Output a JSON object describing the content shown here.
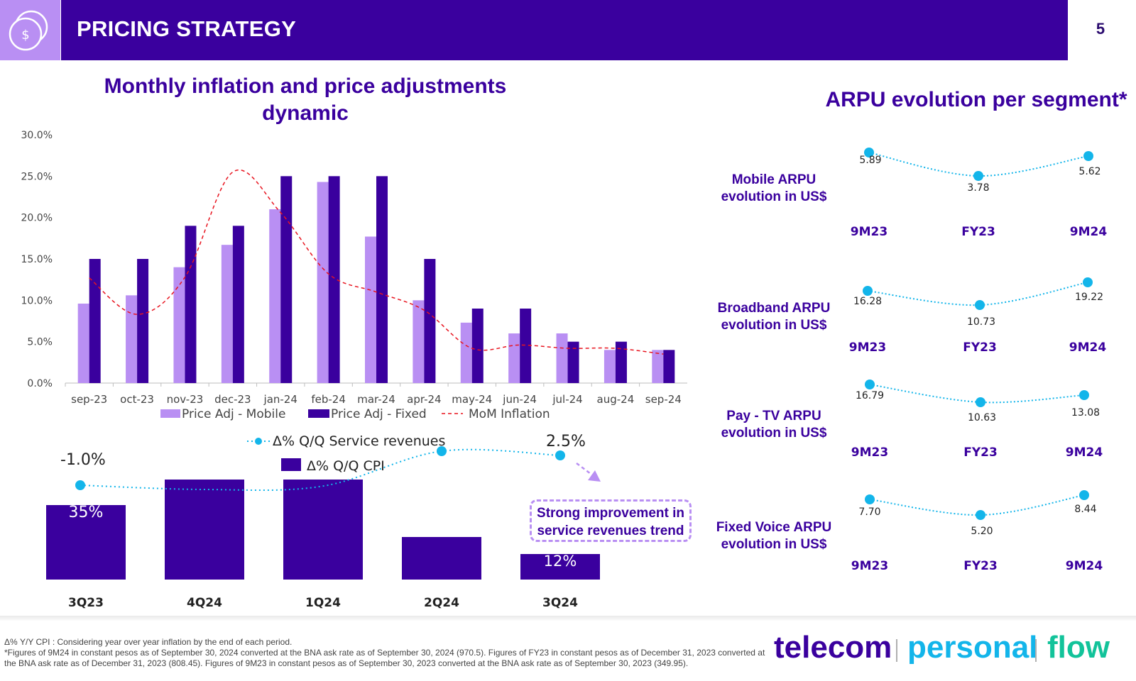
{
  "header": {
    "title": "PRICING STRATEGY",
    "page_number": "5",
    "icon": "dollar-coin-icon",
    "colors": {
      "bar": "#3a009e",
      "icon_box": "#b98ff3"
    }
  },
  "left_title": "Monthly inflation and price adjustments dynamic",
  "right_title": "ARPU evolution per segment*",
  "chart_data": [
    {
      "type": "bar",
      "title": "Monthly inflation and price adjustments dynamic",
      "categories": [
        "sep-23",
        "oct-23",
        "nov-23",
        "dec-23",
        "jan-24",
        "feb-24",
        "mar-24",
        "apr-24",
        "may-24",
        "jun-24",
        "jul-24",
        "aug-24",
        "sep-24"
      ],
      "series": [
        {
          "name": "Price Adj - Mobile",
          "kind": "bar",
          "color": "#b98ff3",
          "values": [
            9.6,
            10.6,
            14.0,
            16.7,
            21.0,
            24.3,
            17.7,
            10.0,
            7.3,
            6.0,
            6.0,
            4.0,
            4.0
          ]
        },
        {
          "name": "Price Adj - Fixed",
          "kind": "bar",
          "color": "#3a009e",
          "values": [
            15.0,
            15.0,
            19.0,
            19.0,
            25.0,
            25.0,
            25.0,
            15.0,
            9.0,
            9.0,
            5.0,
            5.0,
            4.0
          ]
        },
        {
          "name": "MoM Inflation",
          "kind": "line",
          "style": "dashed",
          "color": "#e8141f",
          "values": [
            12.7,
            8.3,
            12.8,
            25.5,
            20.6,
            13.2,
            11.0,
            8.8,
            4.2,
            4.6,
            4.2,
            4.2,
            3.5
          ]
        }
      ],
      "y_ticks": [
        "0.0%",
        "5.0%",
        "10.0%",
        "15.0%",
        "20.0%",
        "25.0%",
        "30.0%"
      ],
      "ylim": [
        0,
        30
      ],
      "legend": [
        "Price Adj - Mobile",
        "Price Adj - Fixed",
        "MoM Inflation"
      ],
      "legend_position": "bottom"
    },
    {
      "type": "bar",
      "title": "",
      "categories": [
        "3Q23",
        "4Q24",
        "1Q24",
        "2Q24",
        "3Q24"
      ],
      "series": [
        {
          "name": "Δ% Q/Q CPI",
          "kind": "bar",
          "color": "#3a009e",
          "values": [
            35,
            47,
            47,
            20,
            12
          ]
        },
        {
          "name": "Δ% Q/Q Service revenues",
          "kind": "line",
          "style": "dotted",
          "color": "#13b5ea",
          "values": [
            -1.0,
            -1.5,
            -1.1,
            3.0,
            2.5
          ]
        }
      ],
      "data_labels": {
        "cpi_3Q23": "35%",
        "cpi_3Q24": "12%",
        "rev_3Q23": "-1.0%",
        "rev_3Q24": "2.5%"
      },
      "legend": [
        "Δ% Q/Q Service revenues",
        "Δ% Q/Q CPI"
      ],
      "legend_position": "top-center",
      "callout": "Strong improvement in service revenues trend"
    },
    {
      "type": "line",
      "title": "ARPU evolution per segment*",
      "categories": [
        "9M23",
        "FY23",
        "9M24"
      ],
      "series": [
        {
          "name": "Mobile ARPU evolution in US$",
          "values": [
            5.89,
            3.78,
            5.62
          ],
          "labels": [
            "5.89",
            "3.78",
            "5.62"
          ]
        },
        {
          "name": "Broadband ARPU evolution in US$",
          "values": [
            16.28,
            10.73,
            19.22
          ],
          "labels": [
            "16.28",
            "10.73",
            "19.22"
          ]
        },
        {
          "name": "Pay - TV ARPU evolution in US$",
          "values": [
            16.79,
            10.63,
            13.08
          ],
          "labels": [
            "16.79",
            "10.63",
            "13.08"
          ]
        },
        {
          "name": "Fixed Voice ARPU evolution in US$",
          "values": [
            7.7,
            5.2,
            8.44
          ],
          "labels": [
            "7.70",
            "5.20",
            "8.44"
          ]
        }
      ],
      "color": "#13b5ea"
    }
  ],
  "segments": [
    {
      "label_1": "Mobile ARPU",
      "label_2": "evolution in US$"
    },
    {
      "label_1": "Broadband ARPU",
      "label_2": "evolution in US$"
    },
    {
      "label_1": "Pay - TV ARPU",
      "label_2": "evolution in US$"
    },
    {
      "label_1": "Fixed Voice ARPU",
      "label_2": "evolution in US$"
    }
  ],
  "callout": {
    "line1": "Strong improvement in",
    "line2": "service revenues trend"
  },
  "footnote": {
    "line1": "Δ% Y/Y CPI : Considering year over year inflation by the end of each period.",
    "line2": "*Figures of 9M24 in constant pesos as of September 30, 2024 converted at the BNA ask rate as of September 30, 2024 (970.5). Figures of FY23 in constant pesos as of December 31, 2023 converted at the BNA ask rate as of December 31, 2023 (808.45). Figures of 9M23 in constant pesos as of September 30, 2023 converted at the BNA ask rate as of September 30, 2023 (349.95)."
  },
  "brands": {
    "telecom": "telecom",
    "personal": "personal",
    "flow": "flow",
    "colors": {
      "telecom": "#3a009e",
      "personal": "#13b5ea",
      "flow": "#12c39a"
    }
  }
}
